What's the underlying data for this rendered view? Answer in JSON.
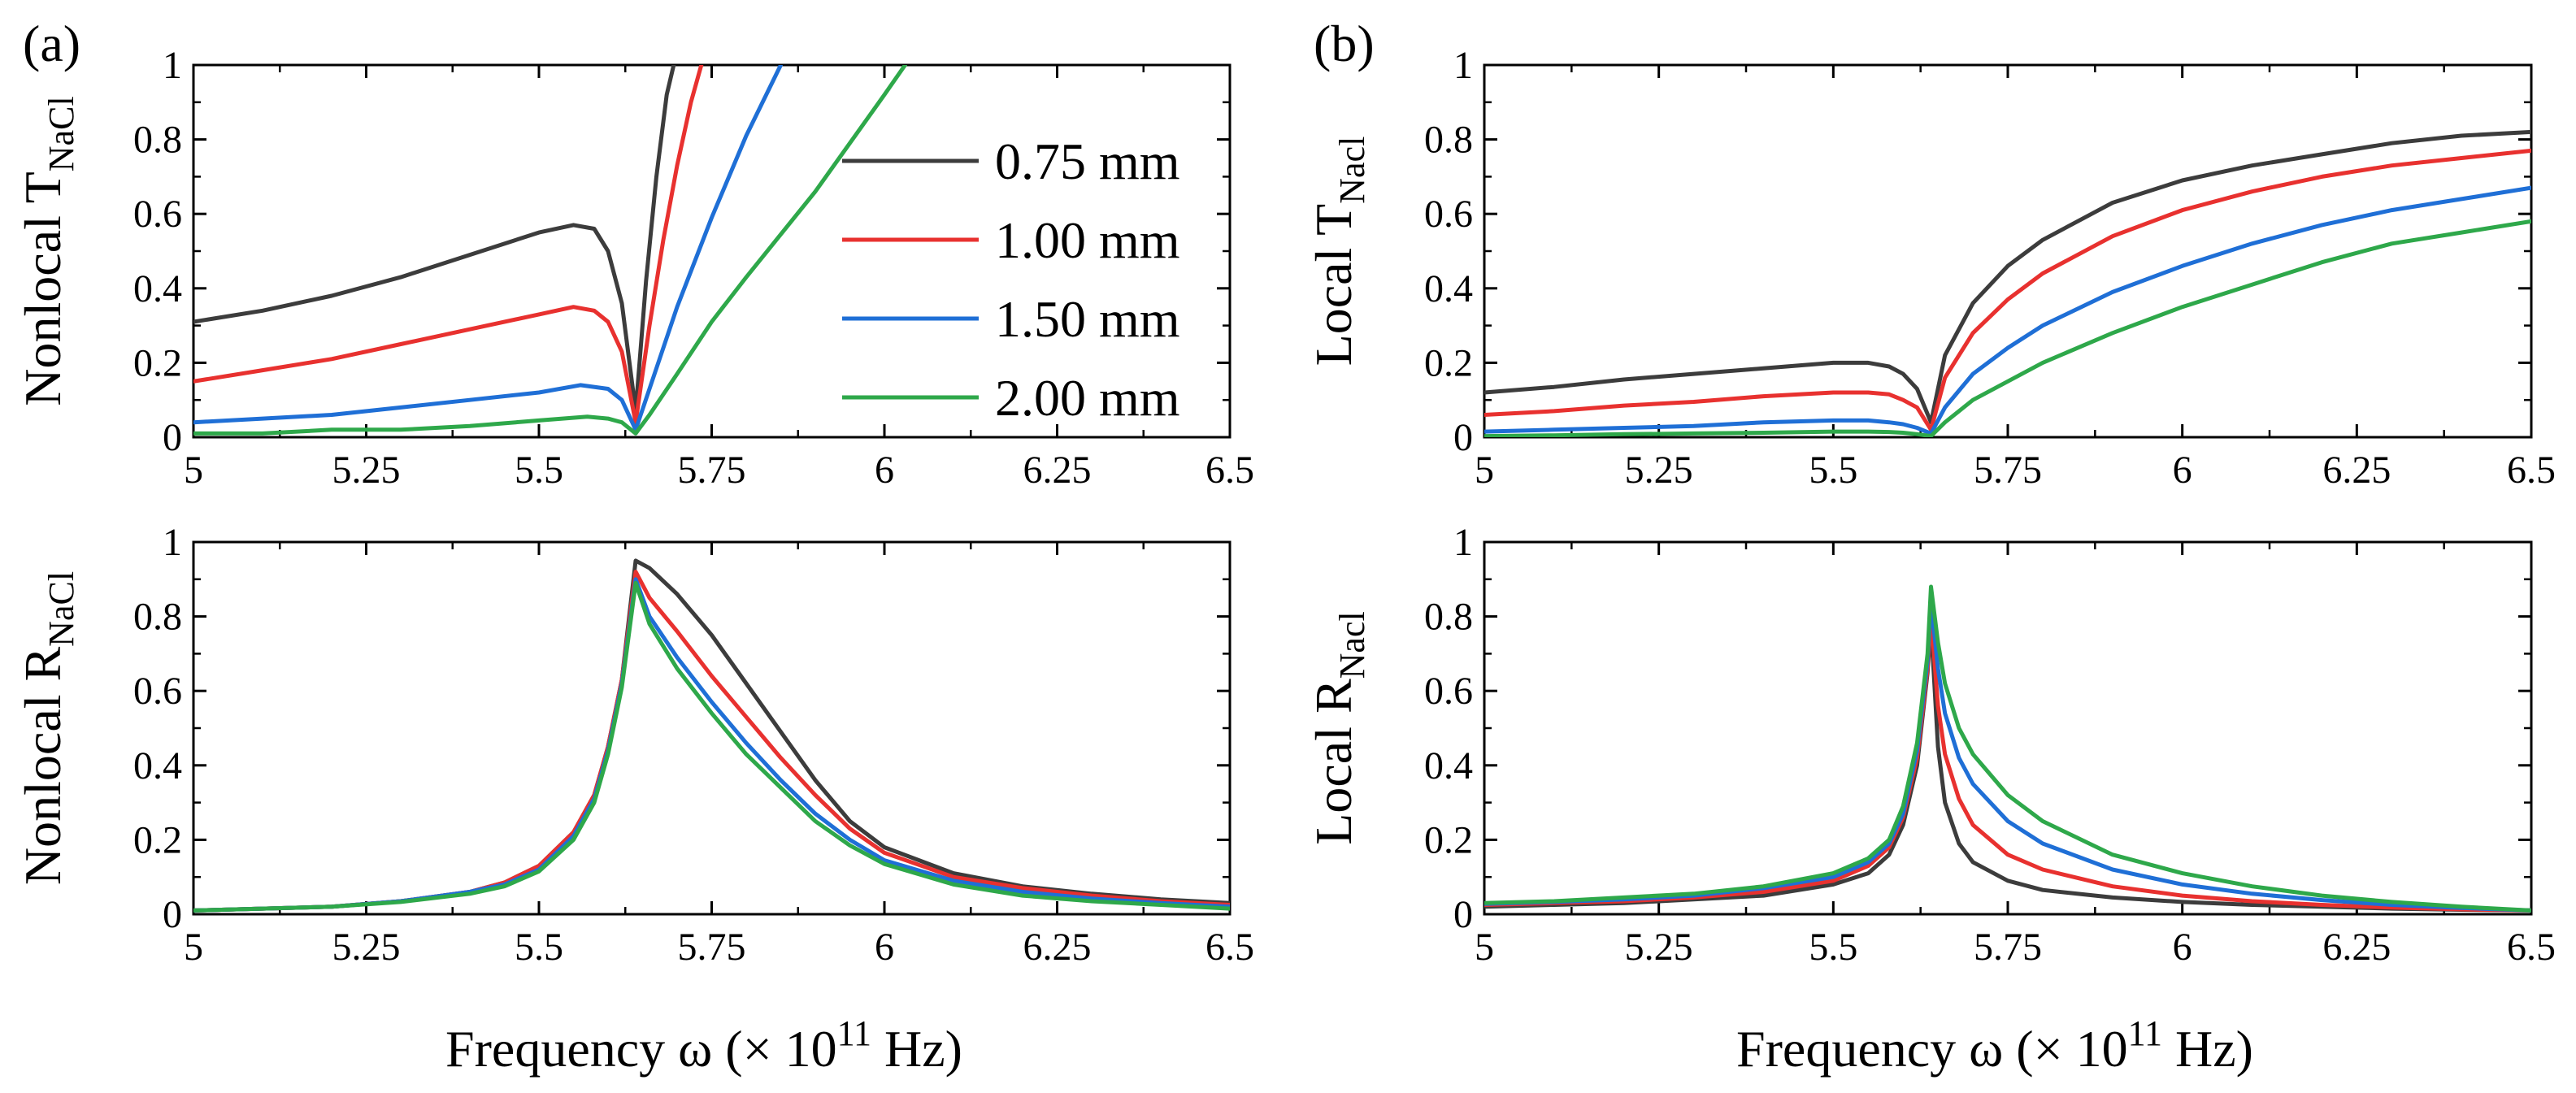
{
  "figure": {
    "panel_labels": [
      "(a)",
      "(b)"
    ]
  },
  "legend": {
    "entries": [
      {
        "label": "0.75 mm",
        "color": "#3c3c3c"
      },
      {
        "label": "1.00 mm",
        "color": "#e8312f"
      },
      {
        "label": "1.50 mm",
        "color": "#1f6fd6"
      },
      {
        "label": "2.00 mm",
        "color": "#2ea84a"
      }
    ]
  },
  "chart_data": [
    {
      "id": "a-top",
      "type": "line",
      "ylabel_main": "Nonlocal T",
      "ylabel_sub": "NaCl",
      "xlim": [
        5,
        6.5
      ],
      "ylim": [
        0,
        1
      ],
      "xticks": [
        "5",
        "5.25",
        "5.5",
        "5.75",
        "6",
        "6.25",
        "6.5"
      ],
      "yticks": [
        "0",
        "0.2",
        "0.4",
        "0.6",
        "0.8",
        "1"
      ],
      "series": [
        {
          "name": "0.75 mm",
          "color": "#3c3c3c",
          "x": [
            5.0,
            5.1,
            5.2,
            5.3,
            5.4,
            5.5,
            5.55,
            5.58,
            5.6,
            5.62,
            5.64,
            5.655,
            5.67,
            5.685,
            5.695
          ],
          "y": [
            0.31,
            0.34,
            0.38,
            0.43,
            0.49,
            0.55,
            0.57,
            0.56,
            0.5,
            0.36,
            0.07,
            0.42,
            0.7,
            0.92,
            1.0
          ]
        },
        {
          "name": "1.00 mm",
          "color": "#e8312f",
          "x": [
            5.0,
            5.1,
            5.2,
            5.3,
            5.4,
            5.5,
            5.55,
            5.58,
            5.6,
            5.62,
            5.64,
            5.66,
            5.68,
            5.7,
            5.72,
            5.735
          ],
          "y": [
            0.15,
            0.18,
            0.21,
            0.25,
            0.29,
            0.33,
            0.35,
            0.34,
            0.31,
            0.23,
            0.04,
            0.3,
            0.53,
            0.73,
            0.9,
            1.0
          ]
        },
        {
          "name": "1.50 mm",
          "color": "#1f6fd6",
          "x": [
            5.0,
            5.1,
            5.2,
            5.3,
            5.4,
            5.5,
            5.56,
            5.6,
            5.62,
            5.64,
            5.66,
            5.7,
            5.75,
            5.8,
            5.85
          ],
          "y": [
            0.04,
            0.05,
            0.06,
            0.08,
            0.1,
            0.12,
            0.14,
            0.13,
            0.1,
            0.02,
            0.13,
            0.35,
            0.59,
            0.81,
            1.0
          ]
        },
        {
          "name": "2.00 mm",
          "color": "#2ea84a",
          "x": [
            5.0,
            5.1,
            5.2,
            5.3,
            5.4,
            5.5,
            5.57,
            5.6,
            5.62,
            5.64,
            5.66,
            5.7,
            5.75,
            5.8,
            5.9,
            6.0,
            6.03
          ],
          "y": [
            0.01,
            0.01,
            0.02,
            0.02,
            0.03,
            0.045,
            0.055,
            0.05,
            0.04,
            0.01,
            0.06,
            0.17,
            0.31,
            0.43,
            0.66,
            0.92,
            1.0
          ]
        }
      ]
    },
    {
      "id": "b-top",
      "type": "line",
      "ylabel_main": "Local T",
      "ylabel_sub": "Nacl",
      "xlim": [
        5,
        6.5
      ],
      "ylim": [
        0,
        1
      ],
      "xticks": [
        "5",
        "5.25",
        "5.5",
        "5.75",
        "6",
        "6.25",
        "6.5"
      ],
      "yticks": [
        "0",
        "0.2",
        "0.4",
        "0.6",
        "0.8",
        "1"
      ],
      "series": [
        {
          "name": "0.75 mm",
          "color": "#3c3c3c",
          "x": [
            5.0,
            5.1,
            5.2,
            5.3,
            5.4,
            5.5,
            5.55,
            5.58,
            5.6,
            5.62,
            5.64,
            5.66,
            5.7,
            5.75,
            5.8,
            5.9,
            6.0,
            6.1,
            6.2,
            6.3,
            6.4,
            6.5
          ],
          "y": [
            0.12,
            0.135,
            0.155,
            0.17,
            0.185,
            0.2,
            0.2,
            0.19,
            0.17,
            0.13,
            0.04,
            0.22,
            0.36,
            0.46,
            0.53,
            0.63,
            0.69,
            0.73,
            0.76,
            0.79,
            0.81,
            0.82
          ]
        },
        {
          "name": "1.00 mm",
          "color": "#e8312f",
          "x": [
            5.0,
            5.1,
            5.2,
            5.3,
            5.4,
            5.5,
            5.55,
            5.58,
            5.6,
            5.62,
            5.64,
            5.66,
            5.7,
            5.75,
            5.8,
            5.9,
            6.0,
            6.1,
            6.2,
            6.3,
            6.4,
            6.5
          ],
          "y": [
            0.06,
            0.07,
            0.085,
            0.095,
            0.11,
            0.12,
            0.12,
            0.115,
            0.1,
            0.08,
            0.02,
            0.16,
            0.28,
            0.37,
            0.44,
            0.54,
            0.61,
            0.66,
            0.7,
            0.73,
            0.75,
            0.77
          ]
        },
        {
          "name": "1.50 mm",
          "color": "#1f6fd6",
          "x": [
            5.0,
            5.1,
            5.2,
            5.3,
            5.4,
            5.5,
            5.55,
            5.58,
            5.6,
            5.62,
            5.64,
            5.66,
            5.7,
            5.75,
            5.8,
            5.9,
            6.0,
            6.1,
            6.2,
            6.3,
            6.4,
            6.5
          ],
          "y": [
            0.015,
            0.02,
            0.025,
            0.03,
            0.04,
            0.045,
            0.045,
            0.04,
            0.035,
            0.025,
            0.01,
            0.08,
            0.17,
            0.24,
            0.3,
            0.39,
            0.46,
            0.52,
            0.57,
            0.61,
            0.64,
            0.67
          ]
        },
        {
          "name": "2.00 mm",
          "color": "#2ea84a",
          "x": [
            5.0,
            5.1,
            5.2,
            5.3,
            5.4,
            5.5,
            5.55,
            5.58,
            5.6,
            5.62,
            5.64,
            5.66,
            5.7,
            5.75,
            5.8,
            5.9,
            6.0,
            6.1,
            6.2,
            6.3,
            6.4,
            6.5
          ],
          "y": [
            0.003,
            0.005,
            0.008,
            0.01,
            0.012,
            0.015,
            0.015,
            0.014,
            0.012,
            0.008,
            0.003,
            0.04,
            0.1,
            0.15,
            0.2,
            0.28,
            0.35,
            0.41,
            0.47,
            0.52,
            0.55,
            0.58
          ]
        }
      ]
    },
    {
      "id": "a-bottom",
      "type": "line",
      "ylabel_main": "Nonlocal R",
      "ylabel_sub": "NaCl",
      "xlim": [
        5,
        6.5
      ],
      "ylim": [
        0,
        1
      ],
      "xticks": [
        "5",
        "5.25",
        "5.5",
        "5.75",
        "6",
        "6.25",
        "6.5"
      ],
      "yticks": [
        "0",
        "0.2",
        "0.4",
        "0.6",
        "0.8",
        "1"
      ],
      "series": [
        {
          "name": "0.75 mm",
          "color": "#3c3c3c",
          "x": [
            5.0,
            5.1,
            5.2,
            5.3,
            5.4,
            5.45,
            5.5,
            5.55,
            5.58,
            5.6,
            5.62,
            5.64,
            5.66,
            5.7,
            5.75,
            5.8,
            5.85,
            5.9,
            5.95,
            6.0,
            6.1,
            6.2,
            6.3,
            6.4,
            6.5
          ],
          "y": [
            0.01,
            0.015,
            0.02,
            0.035,
            0.06,
            0.085,
            0.13,
            0.22,
            0.32,
            0.45,
            0.63,
            0.95,
            0.93,
            0.86,
            0.75,
            0.62,
            0.49,
            0.36,
            0.25,
            0.18,
            0.11,
            0.075,
            0.055,
            0.04,
            0.03
          ]
        },
        {
          "name": "1.00 mm",
          "color": "#e8312f",
          "x": [
            5.0,
            5.1,
            5.2,
            5.3,
            5.4,
            5.45,
            5.5,
            5.55,
            5.58,
            5.6,
            5.62,
            5.64,
            5.66,
            5.7,
            5.75,
            5.8,
            5.85,
            5.9,
            5.95,
            6.0,
            6.1,
            6.2,
            6.3,
            6.4,
            6.5
          ],
          "y": [
            0.01,
            0.015,
            0.02,
            0.035,
            0.06,
            0.085,
            0.13,
            0.22,
            0.32,
            0.45,
            0.63,
            0.92,
            0.85,
            0.76,
            0.64,
            0.53,
            0.42,
            0.32,
            0.23,
            0.165,
            0.1,
            0.07,
            0.05,
            0.035,
            0.025
          ]
        },
        {
          "name": "1.50 mm",
          "color": "#1f6fd6",
          "x": [
            5.0,
            5.1,
            5.2,
            5.3,
            5.4,
            5.45,
            5.5,
            5.55,
            5.58,
            5.6,
            5.62,
            5.64,
            5.66,
            5.7,
            5.75,
            5.8,
            5.85,
            5.9,
            5.95,
            6.0,
            6.1,
            6.2,
            6.3,
            6.4,
            6.5
          ],
          "y": [
            0.01,
            0.015,
            0.02,
            0.035,
            0.06,
            0.08,
            0.12,
            0.21,
            0.31,
            0.44,
            0.62,
            0.9,
            0.8,
            0.69,
            0.57,
            0.46,
            0.36,
            0.27,
            0.2,
            0.145,
            0.09,
            0.06,
            0.042,
            0.03,
            0.02
          ]
        },
        {
          "name": "2.00 mm",
          "color": "#2ea84a",
          "x": [
            5.0,
            5.1,
            5.2,
            5.3,
            5.4,
            5.45,
            5.5,
            5.55,
            5.58,
            5.6,
            5.62,
            5.64,
            5.66,
            5.7,
            5.75,
            5.8,
            5.85,
            5.9,
            5.95,
            6.0,
            6.1,
            6.2,
            6.3,
            6.4,
            6.5
          ],
          "y": [
            0.01,
            0.015,
            0.02,
            0.033,
            0.055,
            0.075,
            0.115,
            0.2,
            0.3,
            0.43,
            0.61,
            0.89,
            0.78,
            0.66,
            0.54,
            0.43,
            0.34,
            0.25,
            0.185,
            0.135,
            0.08,
            0.05,
            0.035,
            0.025,
            0.015
          ]
        }
      ]
    },
    {
      "id": "b-bottom",
      "type": "line",
      "ylabel_main": "Local R",
      "ylabel_sub": "Nacl",
      "xlim": [
        5,
        6.5
      ],
      "ylim": [
        0,
        1
      ],
      "xticks": [
        "5",
        "5.25",
        "5.5",
        "5.75",
        "6",
        "6.25",
        "6.5"
      ],
      "yticks": [
        "0",
        "0.2",
        "0.4",
        "0.6",
        "0.8",
        "1"
      ],
      "series": [
        {
          "name": "0.75 mm",
          "color": "#3c3c3c",
          "x": [
            5.0,
            5.1,
            5.2,
            5.3,
            5.4,
            5.5,
            5.55,
            5.58,
            5.6,
            5.62,
            5.635,
            5.64,
            5.65,
            5.66,
            5.68,
            5.7,
            5.75,
            5.8,
            5.9,
            6.0,
            6.1,
            6.2,
            6.3,
            6.4,
            6.5
          ],
          "y": [
            0.02,
            0.025,
            0.03,
            0.04,
            0.05,
            0.08,
            0.11,
            0.16,
            0.24,
            0.4,
            0.65,
            0.78,
            0.45,
            0.3,
            0.19,
            0.14,
            0.09,
            0.065,
            0.045,
            0.033,
            0.025,
            0.02,
            0.015,
            0.012,
            0.01
          ]
        },
        {
          "name": "1.00 mm",
          "color": "#e8312f",
          "x": [
            5.0,
            5.1,
            5.2,
            5.3,
            5.4,
            5.5,
            5.55,
            5.58,
            5.6,
            5.62,
            5.635,
            5.64,
            5.65,
            5.66,
            5.68,
            5.7,
            5.75,
            5.8,
            5.9,
            6.0,
            6.1,
            6.2,
            6.3,
            6.4,
            6.5
          ],
          "y": [
            0.025,
            0.03,
            0.035,
            0.045,
            0.06,
            0.09,
            0.13,
            0.18,
            0.26,
            0.42,
            0.66,
            0.8,
            0.56,
            0.43,
            0.31,
            0.24,
            0.16,
            0.12,
            0.075,
            0.05,
            0.035,
            0.025,
            0.018,
            0.013,
            0.01
          ]
        },
        {
          "name": "1.50 mm",
          "color": "#1f6fd6",
          "x": [
            5.0,
            5.1,
            5.2,
            5.3,
            5.4,
            5.5,
            5.55,
            5.58,
            5.6,
            5.62,
            5.635,
            5.64,
            5.65,
            5.66,
            5.68,
            5.7,
            5.75,
            5.8,
            5.9,
            6.0,
            6.1,
            6.2,
            6.3,
            6.4,
            6.5
          ],
          "y": [
            0.028,
            0.033,
            0.04,
            0.05,
            0.07,
            0.1,
            0.14,
            0.19,
            0.27,
            0.44,
            0.68,
            0.84,
            0.66,
            0.54,
            0.42,
            0.35,
            0.25,
            0.19,
            0.12,
            0.08,
            0.055,
            0.038,
            0.025,
            0.017,
            0.01
          ]
        },
        {
          "name": "2.00 mm",
          "color": "#2ea84a",
          "x": [
            5.0,
            5.1,
            5.2,
            5.3,
            5.4,
            5.5,
            5.55,
            5.58,
            5.6,
            5.62,
            5.635,
            5.64,
            5.65,
            5.66,
            5.68,
            5.7,
            5.75,
            5.8,
            5.9,
            6.0,
            6.1,
            6.2,
            6.3,
            6.4,
            6.5
          ],
          "y": [
            0.03,
            0.035,
            0.045,
            0.055,
            0.075,
            0.11,
            0.15,
            0.2,
            0.29,
            0.46,
            0.7,
            0.88,
            0.73,
            0.62,
            0.5,
            0.43,
            0.32,
            0.25,
            0.16,
            0.11,
            0.075,
            0.05,
            0.033,
            0.02,
            0.01
          ]
        }
      ]
    }
  ],
  "xlabel": {
    "main": "Frequency ω (× 10",
    "sup": "11",
    "tail": " Hz)"
  }
}
